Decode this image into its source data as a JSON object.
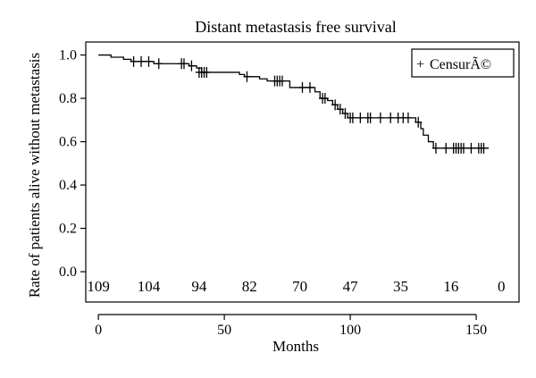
{
  "chart_data": {
    "type": "line",
    "title": "Distant metastasis free survival",
    "xlabel": "Months",
    "ylabel": "Rate of patients alive without metastasis",
    "xlim": [
      -5,
      167
    ],
    "ylim": [
      -0.14,
      1.06
    ],
    "x_ticks": [
      0,
      50,
      100,
      150
    ],
    "y_ticks": [
      0.0,
      0.2,
      0.4,
      0.6,
      0.8,
      1.0
    ],
    "y_tick_labels": [
      "0.0",
      "0.2",
      "0.4",
      "0.6",
      "0.8",
      "1.0"
    ],
    "grid": false,
    "legend": {
      "position": "top-right",
      "marker": "+",
      "label": "CensurÃ©"
    },
    "series": [
      {
        "survival_steps": [
          [
            0,
            1.0
          ],
          [
            5,
            0.99
          ],
          [
            10,
            0.98
          ],
          [
            13,
            0.97
          ],
          [
            22,
            0.96
          ],
          [
            36,
            0.95
          ],
          [
            39,
            0.94
          ],
          [
            41,
            0.92
          ],
          [
            56,
            0.91
          ],
          [
            58,
            0.9
          ],
          [
            64,
            0.89
          ],
          [
            67,
            0.88
          ],
          [
            76,
            0.85
          ],
          [
            86,
            0.83
          ],
          [
            88,
            0.8
          ],
          [
            91,
            0.79
          ],
          [
            93,
            0.77
          ],
          [
            95,
            0.75
          ],
          [
            97,
            0.73
          ],
          [
            99,
            0.71
          ],
          [
            126,
            0.69
          ],
          [
            128,
            0.66
          ],
          [
            129,
            0.63
          ],
          [
            131,
            0.6
          ],
          [
            133,
            0.57
          ],
          [
            155,
            0.57
          ]
        ],
        "censored": [
          [
            14,
            0.97
          ],
          [
            17,
            0.97
          ],
          [
            20,
            0.97
          ],
          [
            24,
            0.96
          ],
          [
            33,
            0.96
          ],
          [
            34,
            0.96
          ],
          [
            37,
            0.95
          ],
          [
            40,
            0.92
          ],
          [
            41,
            0.92
          ],
          [
            42,
            0.92
          ],
          [
            43,
            0.92
          ],
          [
            59,
            0.9
          ],
          [
            70,
            0.88
          ],
          [
            71,
            0.88
          ],
          [
            72,
            0.88
          ],
          [
            73,
            0.88
          ],
          [
            81,
            0.85
          ],
          [
            84,
            0.85
          ],
          [
            89,
            0.8
          ],
          [
            90,
            0.8
          ],
          [
            94,
            0.77
          ],
          [
            96,
            0.75
          ],
          [
            98,
            0.73
          ],
          [
            100,
            0.71
          ],
          [
            101,
            0.71
          ],
          [
            104,
            0.71
          ],
          [
            107,
            0.71
          ],
          [
            108,
            0.71
          ],
          [
            112,
            0.71
          ],
          [
            116,
            0.71
          ],
          [
            119,
            0.71
          ],
          [
            121,
            0.71
          ],
          [
            123,
            0.71
          ],
          [
            127,
            0.69
          ],
          [
            134,
            0.57
          ],
          [
            138,
            0.57
          ],
          [
            141,
            0.57
          ],
          [
            142,
            0.57
          ],
          [
            143,
            0.57
          ],
          [
            144,
            0.57
          ],
          [
            145,
            0.57
          ],
          [
            148,
            0.57
          ],
          [
            151,
            0.57
          ],
          [
            152,
            0.57
          ],
          [
            153,
            0.57
          ]
        ]
      }
    ],
    "at_risk": {
      "months": [
        0,
        20,
        40,
        60,
        80,
        100,
        120,
        140,
        160
      ],
      "counts": [
        "109",
        "104",
        "94",
        "82",
        "70",
        "47",
        "35",
        "16",
        "0"
      ]
    }
  }
}
